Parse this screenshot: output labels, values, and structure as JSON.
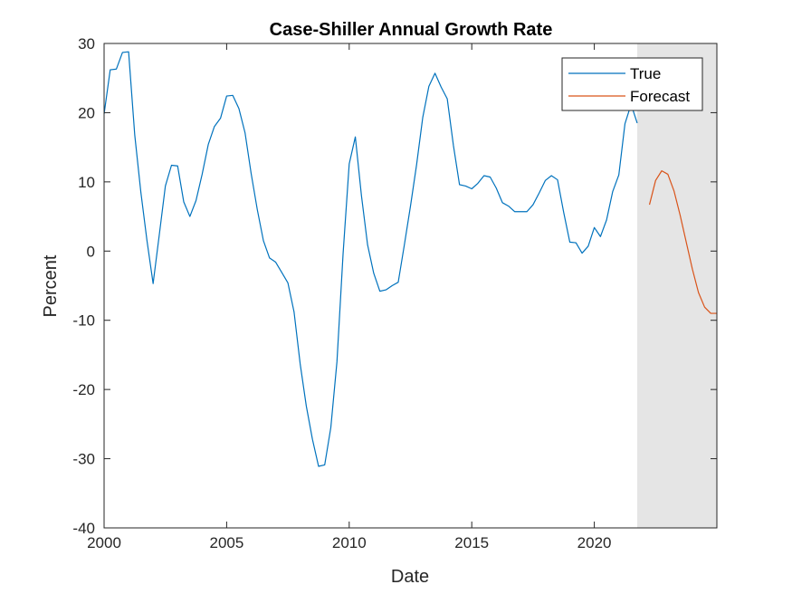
{
  "chart_data": {
    "type": "line",
    "title": "Case-Shiller Annual Growth Rate",
    "xlabel": "Date",
    "ylabel": "Percent",
    "xlim": [
      2000,
      2025
    ],
    "ylim": [
      -40,
      30
    ],
    "xticks": [
      2000,
      2005,
      2010,
      2015,
      2020
    ],
    "xtick_labels": [
      "2000",
      "2005",
      "2010",
      "2015",
      "2020"
    ],
    "yticks": [
      -40,
      -30,
      -20,
      -10,
      0,
      10,
      20,
      30
    ],
    "ytick_labels": [
      "-40",
      "-30",
      "-20",
      "-10",
      "0",
      "10",
      "20",
      "30"
    ],
    "grid": false,
    "legend_position": "top-right",
    "shaded_region": {
      "x_start": 2021.75,
      "x_end": 2025,
      "color": "#e5e5e5"
    },
    "series": [
      {
        "name": "True",
        "color": "#0072bd",
        "x": [
          2000.0,
          2000.25,
          2000.5,
          2000.75,
          2001.0,
          2001.25,
          2001.5,
          2001.75,
          2002.0,
          2002.25,
          2002.5,
          2002.75,
          2003.0,
          2003.25,
          2003.5,
          2003.75,
          2004.0,
          2004.25,
          2004.5,
          2004.75,
          2005.0,
          2005.25,
          2005.5,
          2005.75,
          2006.0,
          2006.25,
          2006.5,
          2006.75,
          2007.0,
          2007.25,
          2007.5,
          2007.75,
          2008.0,
          2008.25,
          2008.5,
          2008.75,
          2009.0,
          2009.25,
          2009.5,
          2009.75,
          2010.0,
          2010.25,
          2010.5,
          2010.75,
          2011.0,
          2011.25,
          2011.5,
          2011.75,
          2012.0,
          2012.25,
          2012.5,
          2012.75,
          2013.0,
          2013.25,
          2013.5,
          2013.75,
          2014.0,
          2014.25,
          2014.5,
          2014.75,
          2015.0,
          2015.25,
          2015.5,
          2015.75,
          2016.0,
          2016.25,
          2016.5,
          2016.75,
          2017.0,
          2017.25,
          2017.5,
          2017.75,
          2018.0,
          2018.25,
          2018.5,
          2018.75,
          2019.0,
          2019.25,
          2019.5,
          2019.75,
          2020.0,
          2020.25,
          2020.5,
          2020.75,
          2021.0,
          2021.25,
          2021.5,
          2021.75
        ],
        "y": [
          19.8,
          26.2,
          26.3,
          28.7,
          28.8,
          16.8,
          8.5,
          1.5,
          -4.7,
          2.3,
          9.4,
          12.4,
          12.3,
          7.1,
          5.0,
          7.3,
          11.1,
          15.4,
          18.0,
          19.2,
          22.4,
          22.5,
          20.6,
          17.1,
          11.2,
          6.0,
          1.5,
          -1.0,
          -1.6,
          -3.1,
          -4.6,
          -8.8,
          -16.3,
          -22.4,
          -27.2,
          -31.1,
          -30.9,
          -25.5,
          -16.0,
          -0.4,
          12.6,
          16.5,
          8.0,
          0.9,
          -3.2,
          -5.8,
          -5.6,
          -5.0,
          -4.5,
          0.9,
          6.5,
          12.5,
          19.3,
          23.8,
          25.7,
          23.7,
          22.0,
          15.3,
          9.6,
          9.4,
          9.0,
          9.8,
          10.9,
          10.7,
          9.1,
          7.0,
          6.5,
          5.7,
          5.7,
          5.7,
          6.7,
          8.4,
          10.2,
          10.9,
          10.3,
          5.6,
          1.3,
          1.2,
          -0.3,
          0.7,
          3.4,
          2.1,
          4.5,
          8.6,
          11.0,
          18.4,
          21.2,
          18.5
        ]
      },
      {
        "name": "Forecast",
        "color": "#d95319",
        "x": [
          2022.25,
          2022.5,
          2022.75,
          2023.0,
          2023.25,
          2023.5,
          2023.75,
          2024.0,
          2024.25,
          2024.5,
          2024.75,
          2025.0
        ],
        "y": [
          6.7,
          10.2,
          11.6,
          11.1,
          8.7,
          5.2,
          1.3,
          -2.6,
          -6.0,
          -8.1,
          -9.0,
          -9.0
        ]
      }
    ]
  }
}
